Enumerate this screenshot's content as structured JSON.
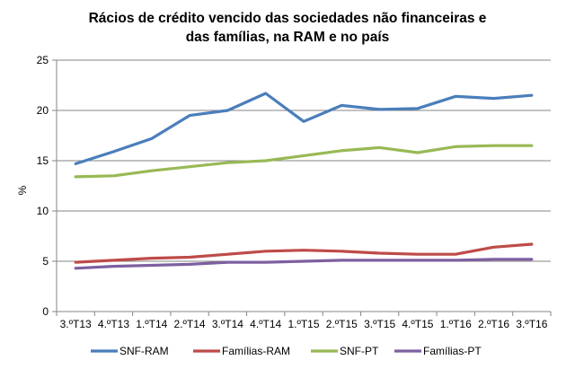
{
  "chart_data": {
    "type": "line",
    "title": [
      "Rácios de crédito vencido das sociedades não financeiras e",
      "das famílias, na RAM e no país"
    ],
    "ylabel": "%",
    "xlabel": "",
    "ylim": [
      0,
      25
    ],
    "yticks": [
      "0",
      "5",
      "10",
      "15",
      "20",
      "25"
    ],
    "categories": [
      "3.ºT13",
      "4.ºT13",
      "1.ºT14",
      "2.ºT14",
      "3.ºT14",
      "4.ºT14",
      "1.ºT15",
      "2.ºT15",
      "3.ºT15",
      "4.ºT15",
      "1.ºT16",
      "2.ºT16",
      "3.ºT16"
    ],
    "grid": "horizontal",
    "legend_position": "bottom",
    "series": [
      {
        "name": "SNF-RAM",
        "color": "#4a7ebb",
        "values": [
          14.7,
          15.9,
          17.2,
          19.5,
          20.0,
          21.7,
          18.9,
          20.5,
          20.1,
          20.2,
          21.4,
          21.2,
          21.5
        ]
      },
      {
        "name": "Famílias-RAM",
        "color": "#be4b48",
        "values": [
          4.9,
          5.1,
          5.3,
          5.4,
          5.7,
          6.0,
          6.1,
          6.0,
          5.8,
          5.7,
          5.7,
          6.4,
          6.7
        ]
      },
      {
        "name": "SNF-PT",
        "color": "#98b954",
        "values": [
          13.4,
          13.5,
          14.0,
          14.4,
          14.8,
          15.0,
          15.5,
          16.0,
          16.3,
          15.8,
          16.4,
          16.5,
          16.5
        ]
      },
      {
        "name": "Famílias-PT",
        "color": "#7d60a0",
        "values": [
          4.3,
          4.5,
          4.6,
          4.7,
          4.9,
          4.9,
          5.0,
          5.1,
          5.1,
          5.1,
          5.1,
          5.2,
          5.2
        ]
      }
    ]
  }
}
